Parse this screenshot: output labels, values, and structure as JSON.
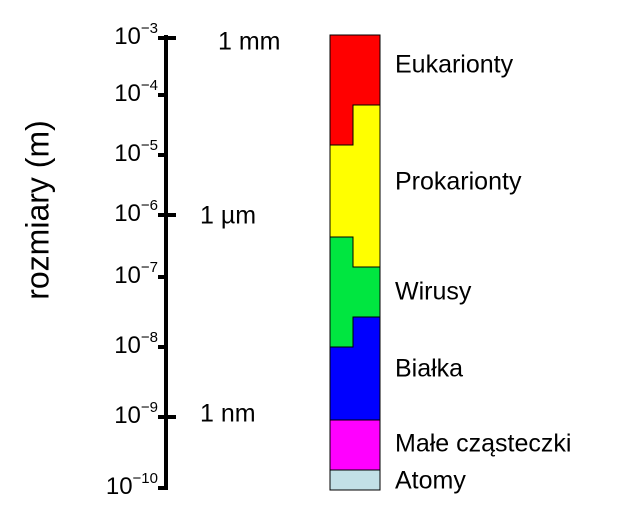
{
  "axis_label": "rozmiary  (m)",
  "ticks": [
    {
      "base": "10",
      "exponent": "−3"
    },
    {
      "base": "10",
      "exponent": "−4"
    },
    {
      "base": "10",
      "exponent": "−5"
    },
    {
      "base": "10",
      "exponent": "−6"
    },
    {
      "base": "10",
      "exponent": "−7"
    },
    {
      "base": "10",
      "exponent": "−8"
    },
    {
      "base": "10",
      "exponent": "−9"
    },
    {
      "base": "10",
      "exponent": "−10"
    }
  ],
  "units": [
    "1 mm",
    "1 µm",
    "1 nm"
  ],
  "categories": [
    "Eukarionty",
    "Prokarionty",
    "Wirusy",
    "Białka",
    "Małe cząsteczki",
    "Atomy"
  ]
}
